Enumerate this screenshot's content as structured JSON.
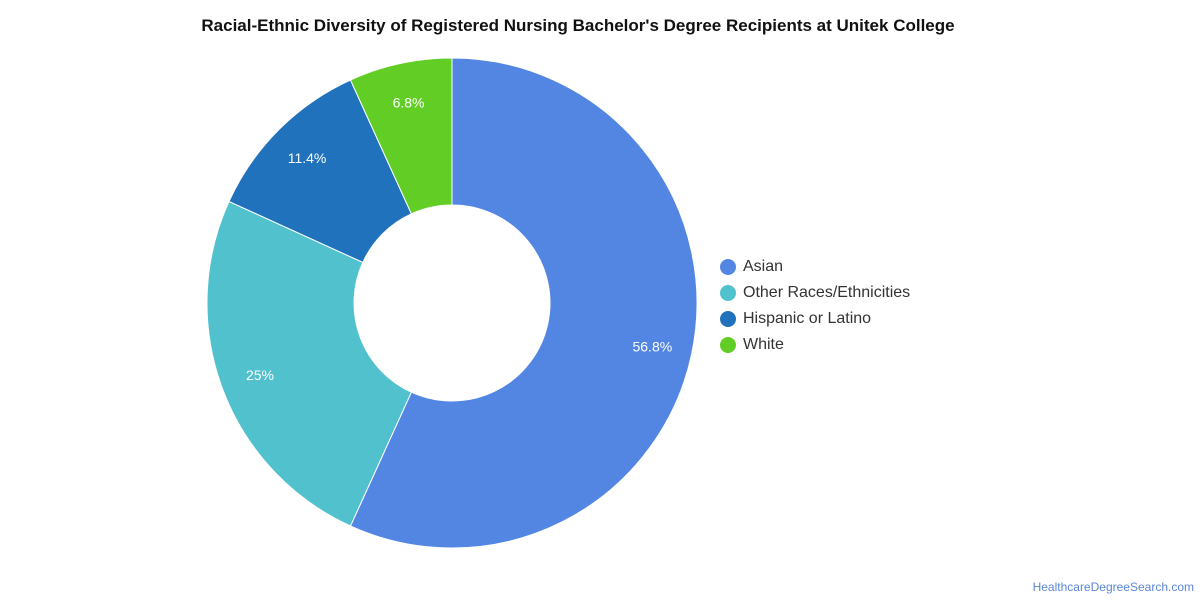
{
  "chart_data": {
    "type": "pie",
    "variant": "donut",
    "title": "Racial-Ethnic Diversity of Registered Nursing Bachelor's Degree Recipients at Unitek College",
    "legend_position": "right",
    "slices": [
      {
        "label": "Asian",
        "value": 56.8,
        "display": "56.8%",
        "color": "#5385e2"
      },
      {
        "label": "Other Races/Ethnicities",
        "value": 25,
        "display": "25%",
        "color": "#50c1cd"
      },
      {
        "label": "Hispanic or Latino",
        "value": 11.4,
        "display": "11.4%",
        "color": "#1f72bb"
      },
      {
        "label": "White",
        "value": 6.8,
        "display": "6.8%",
        "color": "#62cd24"
      }
    ]
  },
  "attribution": "HealthcareDegreeSearch.com"
}
